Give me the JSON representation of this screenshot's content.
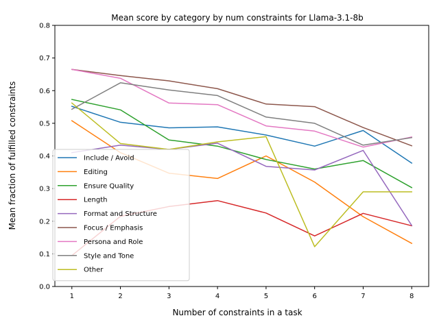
{
  "chart_data": {
    "type": "line",
    "title": "Mean score by category by num constraints for Llama-3.1-8b",
    "xlabel": "Number of constraints in a task",
    "ylabel": "Mean fraction of fulfilled constraints",
    "x": [
      1,
      2,
      3,
      4,
      5,
      6,
      7,
      8
    ],
    "xticks": [
      "1",
      "2",
      "3",
      "4",
      "5",
      "6",
      "7",
      "8"
    ],
    "ylim": [
      0.0,
      0.8
    ],
    "yticks": [
      "0.0",
      "0.1",
      "0.2",
      "0.3",
      "0.4",
      "0.5",
      "0.6",
      "0.7",
      "0.8"
    ],
    "grid": false,
    "legend_position": "lower-left",
    "series": [
      {
        "name": "Include / Avoid",
        "color": "#1f77b4",
        "values": [
          0.552,
          0.503,
          0.486,
          0.489,
          0.464,
          0.43,
          0.478,
          0.378
        ]
      },
      {
        "name": "Editing",
        "color": "#ff7f0e",
        "values": [
          0.508,
          0.41,
          0.347,
          0.331,
          0.4,
          0.32,
          0.214,
          0.132
        ]
      },
      {
        "name": "Ensure Quality",
        "color": "#2ca02c",
        "values": [
          0.573,
          0.541,
          0.449,
          0.43,
          0.389,
          0.36,
          0.386,
          0.303
        ]
      },
      {
        "name": "Length",
        "color": "#d62728",
        "values": [
          0.095,
          0.215,
          0.245,
          0.263,
          0.225,
          0.155,
          0.224,
          0.186
        ]
      },
      {
        "name": "Format and Structure",
        "color": "#9467bd",
        "values": [
          0.41,
          0.433,
          0.42,
          0.439,
          0.368,
          0.357,
          0.417,
          0.187
        ]
      },
      {
        "name": "Focus / Emphasis",
        "color": "#8c564b",
        "values": [
          0.665,
          0.646,
          0.63,
          0.606,
          0.559,
          0.551,
          0.487,
          0.431
        ]
      },
      {
        "name": "Persona and Role",
        "color": "#e377c2",
        "values": [
          0.665,
          0.638,
          0.562,
          0.557,
          0.492,
          0.476,
          0.427,
          0.458
        ]
      },
      {
        "name": "Style and Tone",
        "color": "#7f7f7f",
        "values": [
          0.543,
          0.624,
          0.602,
          0.585,
          0.519,
          0.5,
          0.433,
          0.456
        ]
      },
      {
        "name": "Other",
        "color": "#bcbd22",
        "values": [
          0.562,
          0.438,
          0.42,
          0.443,
          0.459,
          0.122,
          0.29,
          0.29
        ]
      }
    ]
  }
}
